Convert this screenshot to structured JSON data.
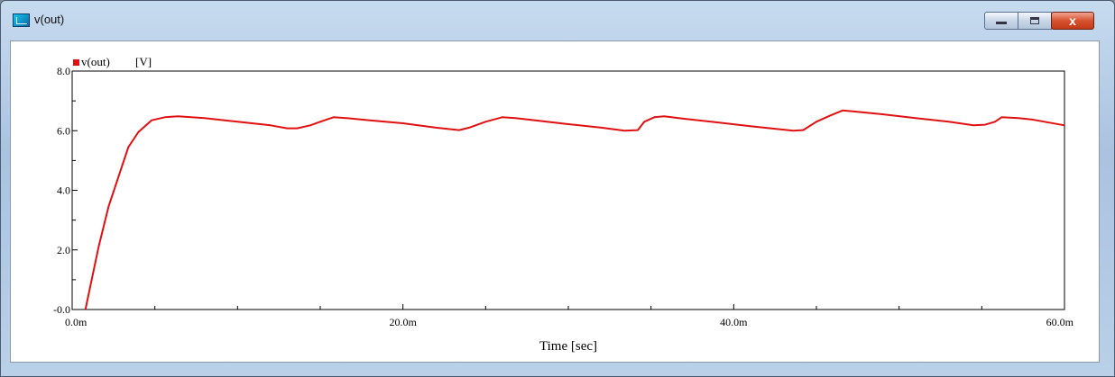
{
  "window": {
    "title": "v(out)",
    "icon": "plot-window-icon",
    "controls": {
      "minimize": "minimize-icon",
      "maximize": "maximize-icon",
      "close_glyph": "x"
    }
  },
  "colors": {
    "trace": "#e01010",
    "axis": "#000000",
    "title_bar": "#b9d0e8",
    "plot_bg": "#ffffff"
  },
  "chart_data": {
    "type": "line",
    "xlabel": "Time [sec]",
    "ylabel": "",
    "xlim": [
      0,
      0.06
    ],
    "ylim": [
      0,
      8
    ],
    "x_tick_values": [
      0,
      0.02,
      0.04,
      0.06
    ],
    "x_tick_labels": [
      "0.0m",
      "20.0m",
      "40.0m",
      "60.0m"
    ],
    "x_minor_ticks": [
      0.005,
      0.01,
      0.015,
      0.025,
      0.03,
      0.035,
      0.045,
      0.05,
      0.055
    ],
    "y_tick_values": [
      0,
      2,
      4,
      6,
      8
    ],
    "y_tick_labels": [
      "-0.0",
      "2.0",
      "4.0",
      "6.0",
      "8.0"
    ],
    "y_minor_ticks": [
      1,
      3,
      5,
      7
    ],
    "grid": false,
    "legend": {
      "position": "top-left",
      "units": "[V]"
    },
    "series": [
      {
        "name": "v(out)",
        "color": "#e01010",
        "x": [
          0.0008,
          0.0012,
          0.0016,
          0.0022,
          0.0028,
          0.0034,
          0.004,
          0.0048,
          0.0056,
          0.0064,
          0.008,
          0.01,
          0.012,
          0.013,
          0.0136,
          0.0144,
          0.015,
          0.0158,
          0.0166,
          0.018,
          0.02,
          0.022,
          0.0234,
          0.024,
          0.025,
          0.026,
          0.0268,
          0.028,
          0.03,
          0.032,
          0.0334,
          0.0342,
          0.0346,
          0.0352,
          0.0358,
          0.037,
          0.039,
          0.041,
          0.0436,
          0.0442,
          0.045,
          0.0458,
          0.0466,
          0.0472,
          0.049,
          0.051,
          0.053,
          0.0545,
          0.0552,
          0.0558,
          0.0562,
          0.0572,
          0.058,
          0.06
        ],
        "y": [
          0.0,
          1.05,
          2.1,
          3.45,
          4.45,
          5.45,
          5.95,
          6.35,
          6.45,
          6.48,
          6.42,
          6.3,
          6.18,
          6.08,
          6.08,
          6.18,
          6.3,
          6.45,
          6.42,
          6.35,
          6.25,
          6.1,
          6.02,
          6.1,
          6.3,
          6.45,
          6.42,
          6.35,
          6.22,
          6.1,
          6.0,
          6.02,
          6.3,
          6.45,
          6.48,
          6.4,
          6.28,
          6.15,
          6.0,
          6.02,
          6.3,
          6.5,
          6.68,
          6.65,
          6.55,
          6.42,
          6.3,
          6.18,
          6.2,
          6.3,
          6.45,
          6.42,
          6.38,
          6.18
        ]
      }
    ]
  }
}
